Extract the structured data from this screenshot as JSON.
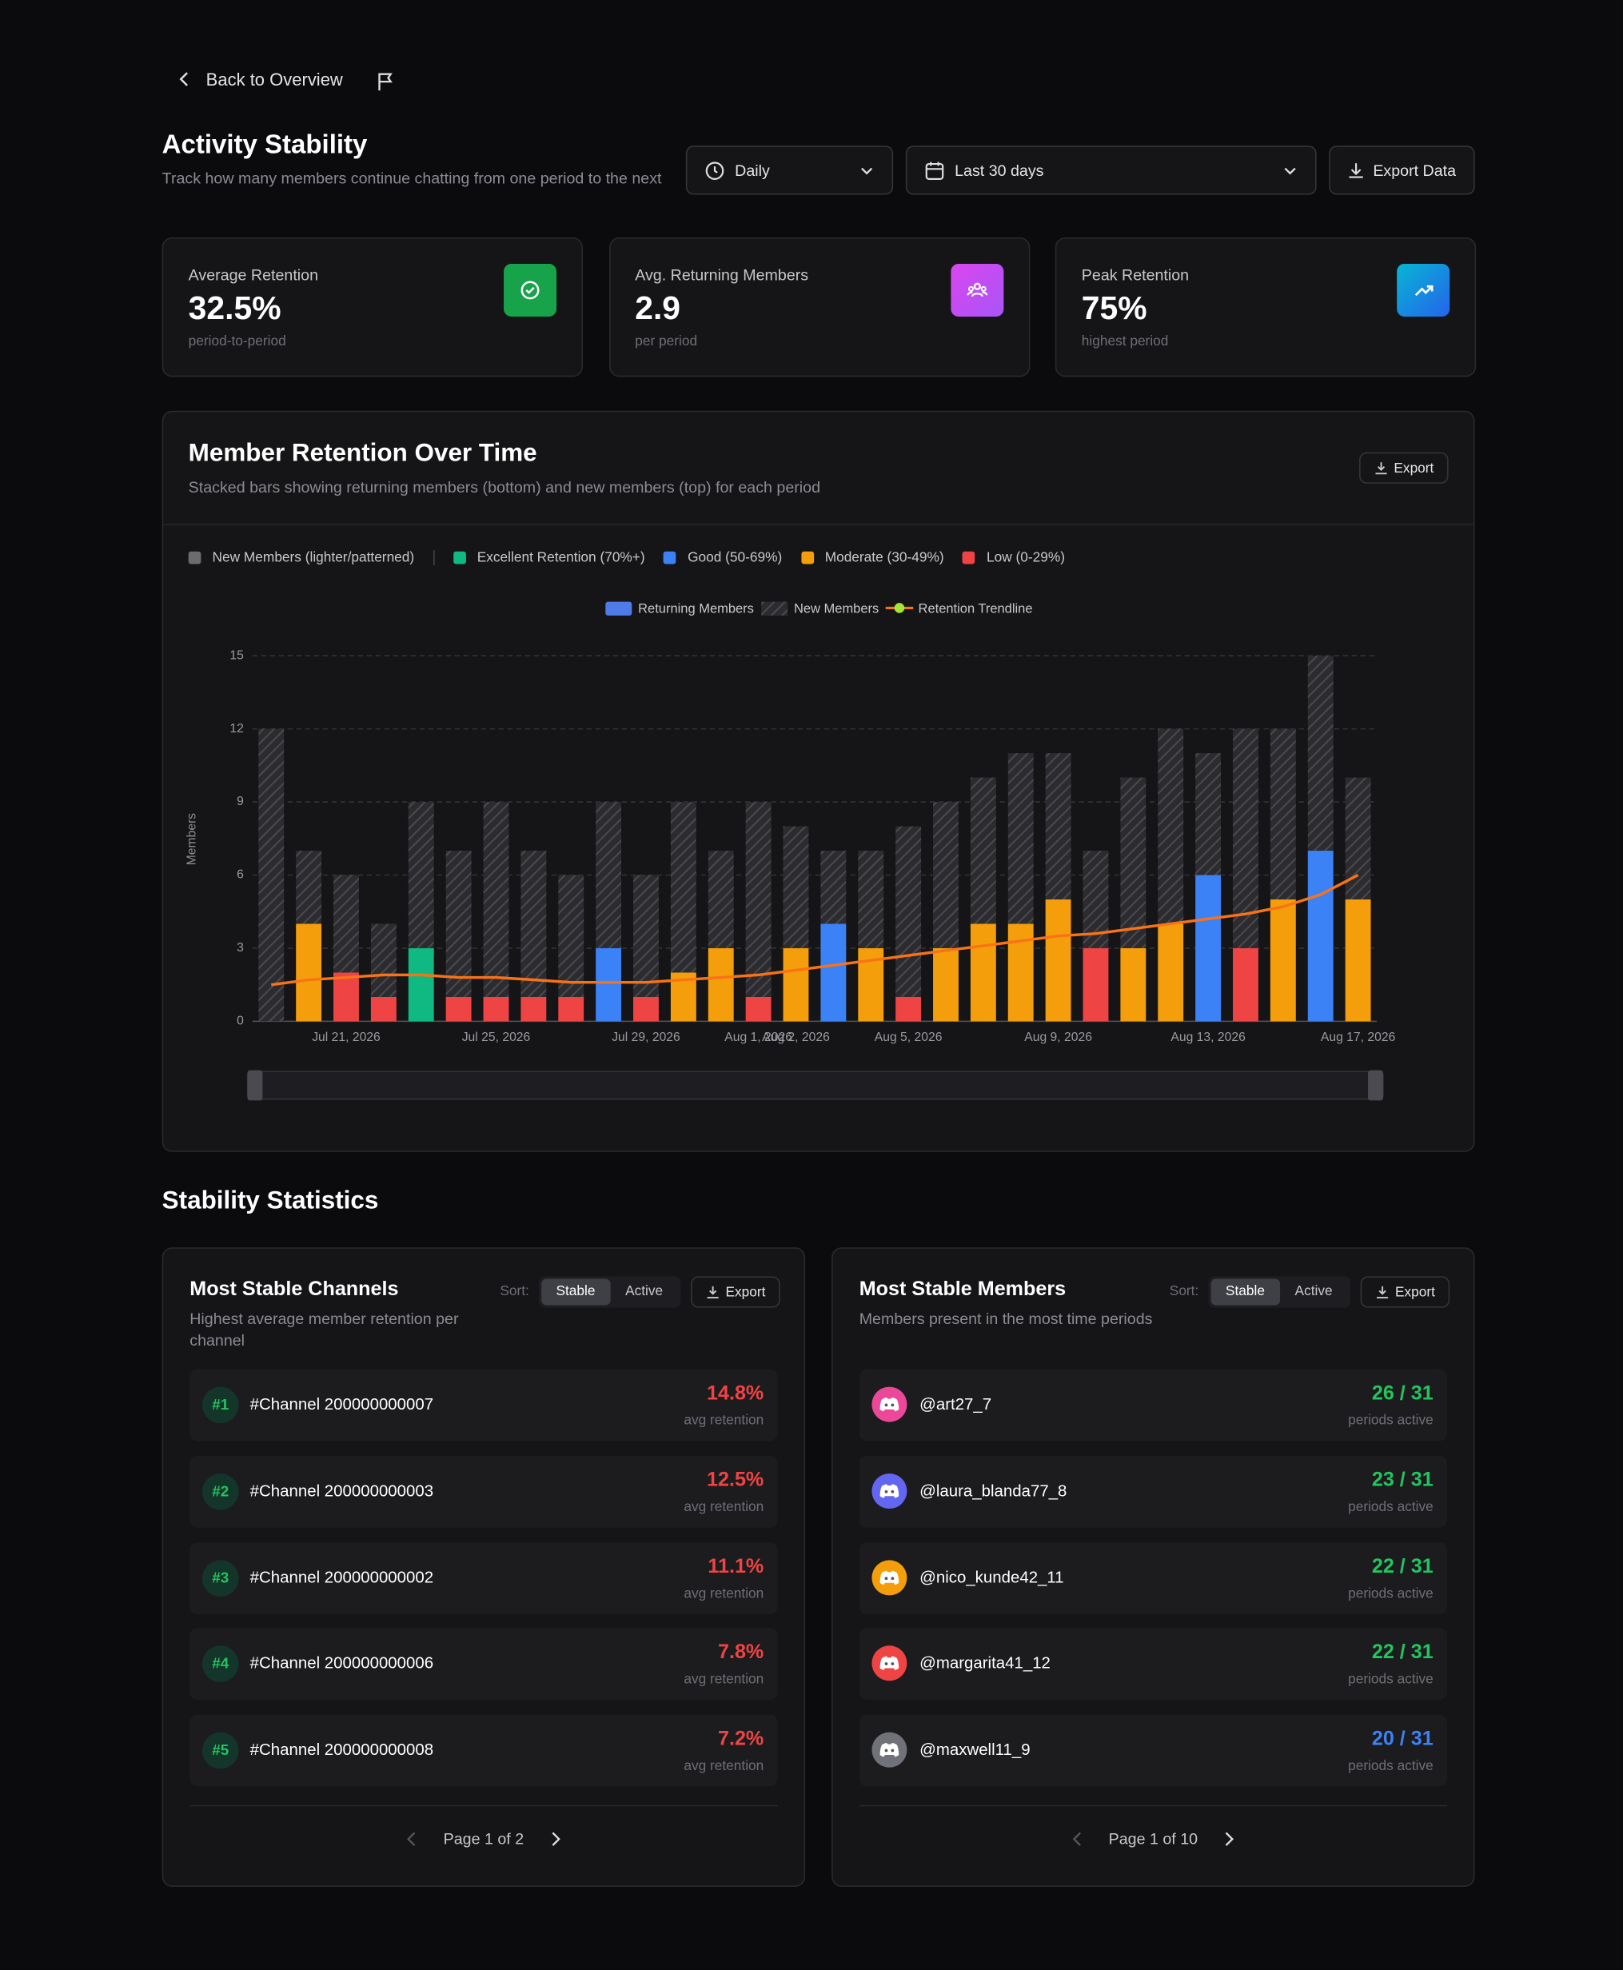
{
  "header": {
    "back": "Back to Overview",
    "title": "Activity Stability",
    "subtitle": "Track how many members continue chatting from one period to the next",
    "period": "Daily",
    "range": "Last 30 days",
    "export": "Export Data"
  },
  "stats": [
    {
      "label": "Average Retention",
      "value": "32.5%",
      "caption": "period-to-period"
    },
    {
      "label": "Avg. Returning Members",
      "value": "2.9",
      "caption": "per period"
    },
    {
      "label": "Peak Retention",
      "value": "75%",
      "caption": "highest period"
    }
  ],
  "chart_data": {
    "type": "bar",
    "stacked": true,
    "title": "Member Retention Over Time",
    "subtitle": "Stacked bars showing returning members (bottom) and new members (top) for each period",
    "export": "Export",
    "retention_legend": [
      {
        "name": "New Members (lighter/patterned)",
        "color": "#6b6b70"
      },
      {
        "name": "Excellent Retention (70%+)",
        "color": "#10b981"
      },
      {
        "name": "Good (50-69%)",
        "color": "#3b82f6"
      },
      {
        "name": "Moderate (30-49%)",
        "color": "#f59e0b"
      },
      {
        "name": "Low (0-29%)",
        "color": "#ef4444"
      }
    ],
    "y_label": "Members",
    "ylim": [
      0,
      15
    ],
    "yticks": [
      0,
      3,
      6,
      9,
      12,
      15
    ],
    "grid": true,
    "categories": [
      null,
      null,
      "Jul 21, 2026",
      null,
      null,
      null,
      "Jul 25, 2026",
      null,
      null,
      null,
      "Jul 29, 2026",
      null,
      null,
      "Aug 1, 2026",
      "Aug 2, 2026",
      null,
      null,
      "Aug 5, 2026",
      null,
      null,
      null,
      "Aug 9, 2026",
      null,
      null,
      null,
      "Aug 13, 2026",
      null,
      null,
      null,
      "Aug 17, 2026"
    ],
    "series": [
      {
        "name": "Returning Members",
        "color": "#4f7be8",
        "values": [
          0,
          4,
          2,
          1,
          3,
          1,
          1,
          1,
          1,
          3,
          1,
          2,
          3,
          1,
          3,
          4,
          3,
          1,
          3,
          4,
          4,
          5,
          3,
          3,
          4,
          6,
          3,
          5,
          7,
          5
        ],
        "colors": [
          "#f59e0b",
          "#f59e0b",
          "#ef4444",
          "#ef4444",
          "#10b981",
          "#ef4444",
          "#ef4444",
          "#ef4444",
          "#ef4444",
          "#3b82f6",
          "#ef4444",
          "#f59e0b",
          "#f59e0b",
          "#ef4444",
          "#f59e0b",
          "#3b82f6",
          "#f59e0b",
          "#ef4444",
          "#f59e0b",
          "#f59e0b",
          "#f59e0b",
          "#f59e0b",
          "#ef4444",
          "#f59e0b",
          "#f59e0b",
          "#3b82f6",
          "#ef4444",
          "#f59e0b",
          "#3b82f6",
          "#f59e0b"
        ]
      },
      {
        "name": "New Members",
        "color": "#3a3a3e",
        "values": [
          12,
          3,
          4,
          3,
          6,
          6,
          8,
          6,
          5,
          6,
          5,
          7,
          4,
          8,
          5,
          3,
          4,
          7,
          6,
          6,
          7,
          6,
          4,
          7,
          8,
          5,
          9,
          7,
          8,
          5
        ]
      },
      {
        "name": "Retention Trendline",
        "type": "line",
        "color": "#f97316",
        "values": [
          1.5,
          1.7,
          1.8,
          1.9,
          1.9,
          1.8,
          1.8,
          1.7,
          1.6,
          1.6,
          1.6,
          1.7,
          1.8,
          1.9,
          2.1,
          2.3,
          2.5,
          2.7,
          2.9,
          3.1,
          3.3,
          3.5,
          3.6,
          3.8,
          4.0,
          4.2,
          4.4,
          4.7,
          5.2,
          6.0
        ]
      }
    ]
  },
  "statistics_title": "Stability Statistics",
  "channels": {
    "title": "Most Stable Channels",
    "subtitle": "Highest average member retention per channel",
    "sort_label": "Sort:",
    "sort_options": [
      "Stable",
      "Active"
    ],
    "export": "Export",
    "pagination": "Page 1 of 2",
    "rows": [
      {
        "rank": "#1",
        "name": "#Channel 200000000007",
        "value": "14.8%",
        "caption": "avg retention",
        "color": "#ef4444"
      },
      {
        "rank": "#2",
        "name": "#Channel 200000000003",
        "value": "12.5%",
        "caption": "avg retention",
        "color": "#ef4444"
      },
      {
        "rank": "#3",
        "name": "#Channel 200000000002",
        "value": "11.1%",
        "caption": "avg retention",
        "color": "#ef4444"
      },
      {
        "rank": "#4",
        "name": "#Channel 200000000006",
        "value": "7.8%",
        "caption": "avg retention",
        "color": "#ef4444"
      },
      {
        "rank": "#5",
        "name": "#Channel 200000000008",
        "value": "7.2%",
        "caption": "avg retention",
        "color": "#ef4444"
      }
    ]
  },
  "members": {
    "title": "Most Stable Members",
    "subtitle": "Members present in the most time periods",
    "sort_label": "Sort:",
    "sort_options": [
      "Stable",
      "Active"
    ],
    "export": "Export",
    "pagination": "Page 1 of 10",
    "rows": [
      {
        "name": "@art27_7",
        "value": "26 / 31",
        "caption": "periods active",
        "color": "#22c55e",
        "avatar": "#ec4899"
      },
      {
        "name": "@laura_blanda77_8",
        "value": "23 / 31",
        "caption": "periods active",
        "color": "#22c55e",
        "avatar": "#6366f1"
      },
      {
        "name": "@nico_kunde42_11",
        "value": "22 / 31",
        "caption": "periods active",
        "color": "#22c55e",
        "avatar": "#f59e0b"
      },
      {
        "name": "@margarita41_12",
        "value": "22 / 31",
        "caption": "periods active",
        "color": "#22c55e",
        "avatar": "#ef4444"
      },
      {
        "name": "@maxwell11_9",
        "value": "20 / 31",
        "caption": "periods active",
        "color": "#3b82f6",
        "avatar": "#71717a"
      }
    ]
  }
}
